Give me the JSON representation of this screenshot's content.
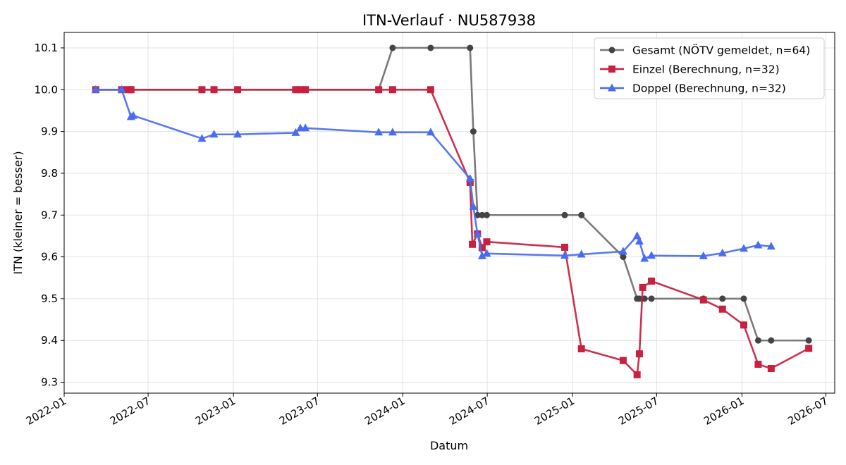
{
  "chart_data": {
    "type": "line",
    "title": "ITN-Verlauf · NU587938",
    "xlabel": "Datum",
    "ylabel": "ITN  (kleiner = besser)",
    "xlim": [
      "2022-01-01",
      "2026-07-20"
    ],
    "ylim": [
      9.274,
      10.137
    ],
    "yticks": [
      9.3,
      9.4,
      9.5,
      9.6,
      9.7,
      9.8,
      9.9,
      10.0,
      10.1
    ],
    "ytick_labels": [
      "9.3",
      "9.4",
      "9.5",
      "9.6",
      "9.7",
      "9.8",
      "9.9",
      "10.0",
      "10.1"
    ],
    "xticks": [
      "2022-01-01",
      "2022-07-01",
      "2023-01-01",
      "2023-07-01",
      "2024-01-01",
      "2024-07-01",
      "2025-01-01",
      "2025-07-01",
      "2026-01-01",
      "2026-07-01"
    ],
    "xtick_labels": [
      "2022-01",
      "2022-07",
      "2023-01",
      "2023-07",
      "2024-01",
      "2024-07",
      "2025-01",
      "2025-07",
      "2026-01",
      "2026-07"
    ],
    "grid": true,
    "legend_position": "top-right",
    "series": [
      {
        "name": "Gesamt (NÖTV gemeldet, n=64)",
        "color": "#7a7a7a",
        "marker_color": "#444444",
        "marker": "circle",
        "x": [
          "2022-03-10",
          "2022-05-05",
          "2022-05-20",
          "2022-05-25",
          "2022-10-25",
          "2022-11-20",
          "2023-01-10",
          "2023-05-15",
          "2023-05-25",
          "2023-06-05",
          "2023-11-10",
          "2023-12-10",
          "2024-03-01",
          "2024-05-25",
          "2024-06-01",
          "2024-06-10",
          "2024-06-20",
          "2024-06-30",
          "2024-12-15",
          "2025-01-20",
          "2025-04-20",
          "2025-05-20",
          "2025-05-25",
          "2025-06-05",
          "2025-06-20",
          "2025-10-10",
          "2025-11-20",
          "2026-01-05",
          "2026-02-05",
          "2026-03-05",
          "2026-05-25"
        ],
        "y": [
          10.0,
          10.0,
          10.0,
          10.0,
          10.0,
          10.0,
          10.0,
          10.0,
          10.0,
          10.0,
          10.0,
          10.1,
          10.1,
          10.1,
          9.9,
          9.7,
          9.7,
          9.7,
          9.7,
          9.7,
          9.6,
          9.5,
          9.5,
          9.5,
          9.5,
          9.5,
          9.5,
          9.5,
          9.4,
          9.4,
          9.4
        ]
      },
      {
        "name": "Einzel (Berechnung, n=32)",
        "color": "#c8203f",
        "marker": "square",
        "x": [
          "2022-03-10",
          "2022-05-05",
          "2022-05-20",
          "2022-05-25",
          "2022-10-25",
          "2022-11-20",
          "2023-01-10",
          "2023-05-15",
          "2023-05-25",
          "2023-06-05",
          "2023-11-10",
          "2023-12-10",
          "2024-03-01",
          "2024-05-25",
          "2024-05-30",
          "2024-06-10",
          "2024-06-20",
          "2024-06-30",
          "2024-12-15",
          "2025-01-20",
          "2025-04-20",
          "2025-05-20",
          "2025-05-25",
          "2025-06-01",
          "2025-06-20",
          "2025-10-10",
          "2025-11-20",
          "2026-01-05",
          "2026-02-05",
          "2026-03-05",
          "2026-05-25"
        ],
        "y": [
          10.0,
          10.0,
          10.0,
          10.0,
          10.0,
          10.0,
          10.0,
          10.0,
          10.0,
          10.0,
          10.0,
          10.0,
          10.0,
          9.778,
          9.63,
          9.655,
          9.622,
          9.636,
          9.623,
          9.38,
          9.352,
          9.318,
          9.368,
          9.527,
          9.542,
          9.497,
          9.475,
          9.437,
          9.343,
          9.333,
          9.381
        ]
      },
      {
        "name": "Doppel (Berechnung, n=32)",
        "color": "#4a6cf0",
        "marker": "triangle",
        "x": [
          "2022-03-10",
          "2022-05-05",
          "2022-05-25",
          "2022-05-30",
          "2022-10-25",
          "2022-11-20",
          "2023-01-10",
          "2023-05-15",
          "2023-05-25",
          "2023-06-05",
          "2023-11-10",
          "2023-12-10",
          "2024-03-01",
          "2024-05-25",
          "2024-06-01",
          "2024-06-10",
          "2024-06-20",
          "2024-06-30",
          "2024-12-15",
          "2025-01-20",
          "2025-04-20",
          "2025-05-20",
          "2025-05-25",
          "2025-06-05",
          "2025-06-20",
          "2025-10-10",
          "2025-11-20",
          "2026-01-05",
          "2026-02-05",
          "2026-03-05"
        ],
        "y": [
          10.0,
          10.0,
          9.935,
          9.938,
          9.883,
          9.893,
          9.893,
          9.897,
          9.908,
          9.908,
          9.898,
          9.898,
          9.898,
          9.787,
          9.72,
          9.655,
          9.602,
          9.608,
          9.603,
          9.606,
          9.613,
          9.65,
          9.637,
          9.596,
          9.603,
          9.602,
          9.609,
          9.62,
          9.628,
          9.625
        ]
      }
    ]
  }
}
